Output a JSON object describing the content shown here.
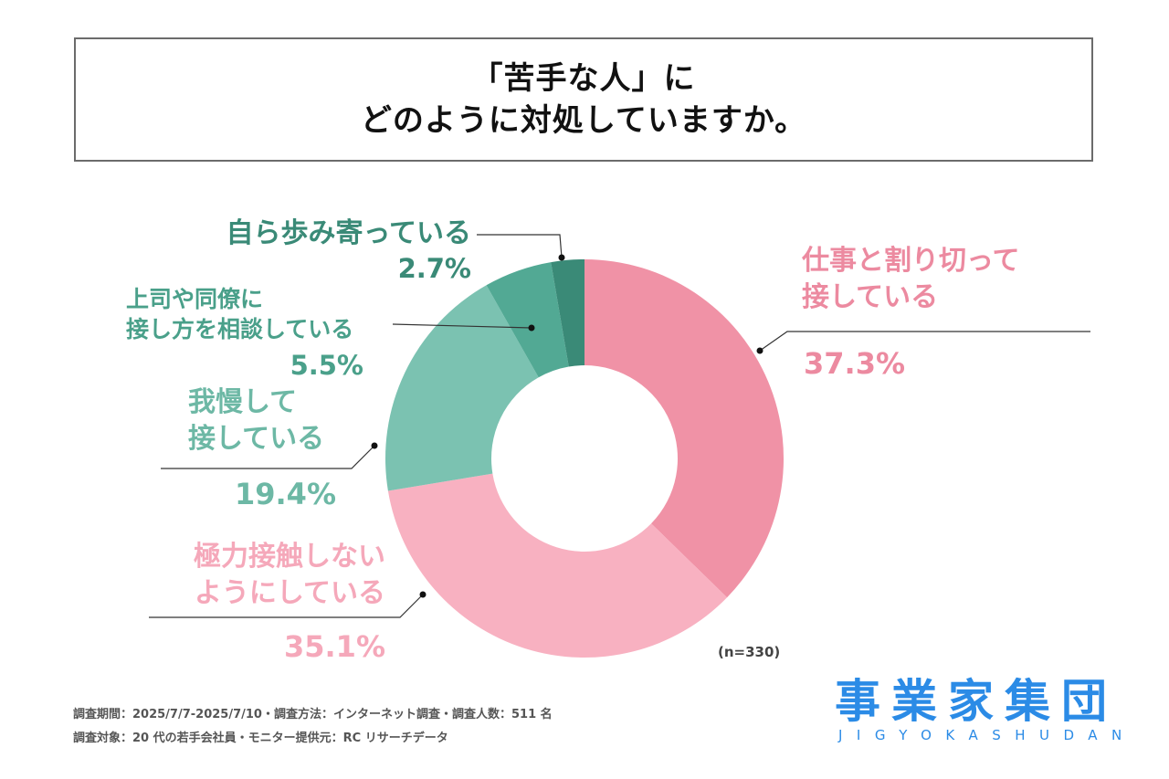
{
  "header": {
    "title_line1": "「苦手な人」に",
    "title_line2": "どのように対処していますか。"
  },
  "chart_data": {
    "type": "pie",
    "variant": "donut",
    "title": "「苦手な人」にどのように対処していますか。",
    "start": "top",
    "direction": "clockwise",
    "categories": [
      "仕事と割り切って接している",
      "極力接触しないようにしている",
      "我慢して接している",
      "上司や同僚に接し方を相談している",
      "自ら歩み寄っている"
    ],
    "values": [
      37.3,
      35.1,
      19.4,
      5.5,
      2.7
    ],
    "unit": "%",
    "colors": [
      "#F092A6",
      "#F8B1C1",
      "#7BC2B1",
      "#52A994",
      "#3A8A77"
    ],
    "label_colors": [
      "#EC8AA0",
      "#F5A8BA",
      "#6DB8A5",
      "#4AA08A",
      "#3A8A77"
    ],
    "labels": [
      {
        "lines": [
          "仕事と割り切って",
          "接している"
        ],
        "pct": "37.3%"
      },
      {
        "lines": [
          "極力接触しない",
          "ようにしている"
        ],
        "pct": "35.1%"
      },
      {
        "lines": [
          "我慢して",
          "接している"
        ],
        "pct": "19.4%"
      },
      {
        "lines": [
          "上司や同僚に",
          "接し方を相談している"
        ],
        "pct": "5.5%"
      },
      {
        "lines": [
          "自ら歩み寄っている"
        ],
        "pct": "2.7%"
      }
    ],
    "sample_size": "(n=330)"
  },
  "footer": {
    "line1": "調査期間：2025/7/7-2025/7/10・調査方法：インターネット調査・調査人数：511 名",
    "line2": "調査対象：20 代の若手会社員・モニター提供元：RC リサーチデータ"
  },
  "logo": {
    "kanji": "事業家集団",
    "roman": "JIGYOKASHUDAN",
    "color": "#2B8BE6"
  }
}
